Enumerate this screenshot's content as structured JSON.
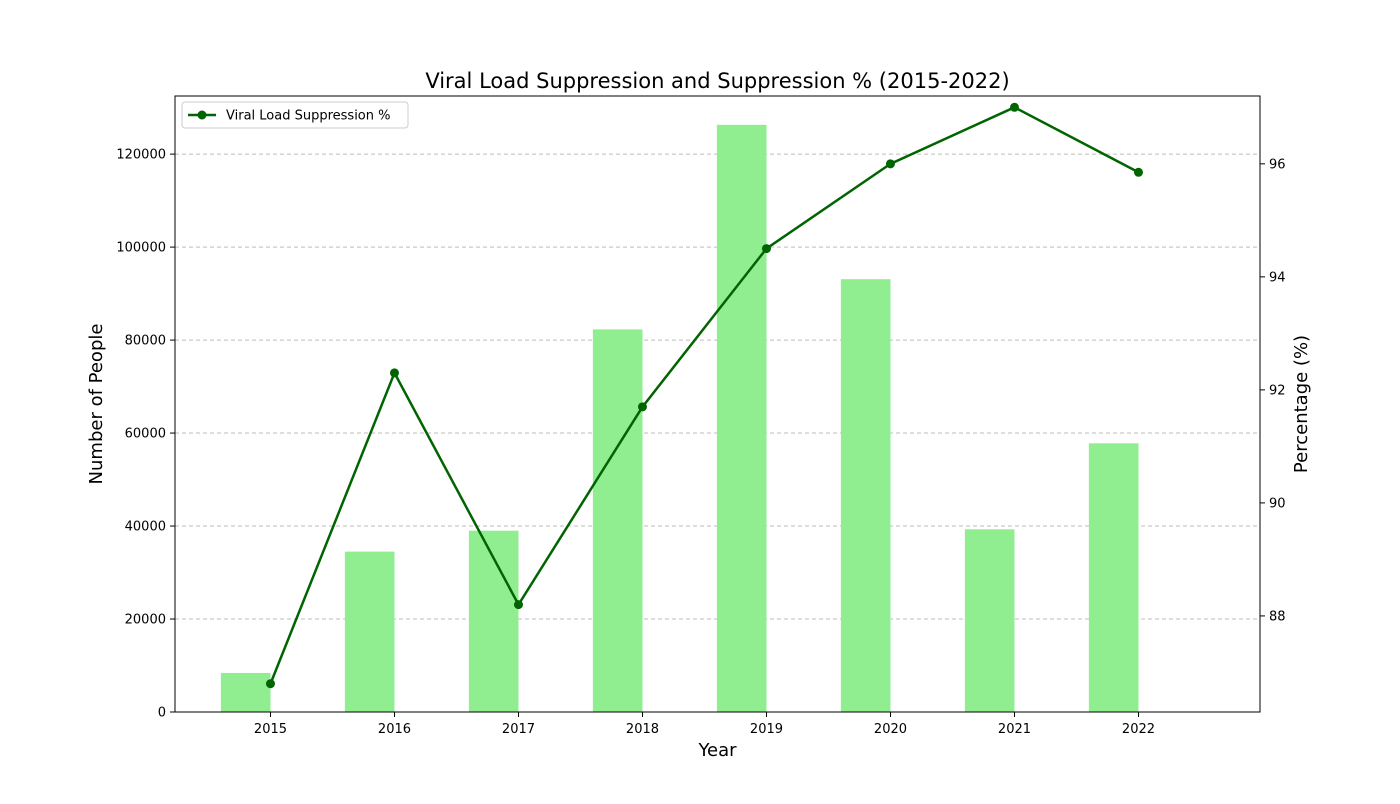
{
  "chart_data": {
    "type": "bar+line",
    "title": "Viral Load Suppression and Suppression % (2015-2022)",
    "xlabel": "Year",
    "ylabel_left": "Number of People",
    "ylabel_right": "Percentage (%)",
    "categories": [
      "2015",
      "2016",
      "2017",
      "2018",
      "2019",
      "2020",
      "2021",
      "2022"
    ],
    "bar_series": {
      "values": [
        8400,
        34500,
        39000,
        82300,
        126300,
        93100,
        39300,
        57800
      ],
      "color": "#90ee90"
    },
    "line_series": {
      "name": "Viral Load Suppression %",
      "values": [
        86.8,
        92.3,
        88.2,
        91.7,
        94.5,
        96.0,
        97.0,
        95.85
      ],
      "color": "#006400"
    },
    "ylim_left": [
      0,
      132500
    ],
    "ylim_right": [
      86.3,
      97.2
    ],
    "yticks_left": [
      0,
      20000,
      40000,
      60000,
      80000,
      100000,
      120000
    ],
    "yticks_right": [
      88,
      90,
      92,
      94,
      96
    ],
    "grid": "horizontal dashed",
    "legend_position": "upper-left"
  }
}
